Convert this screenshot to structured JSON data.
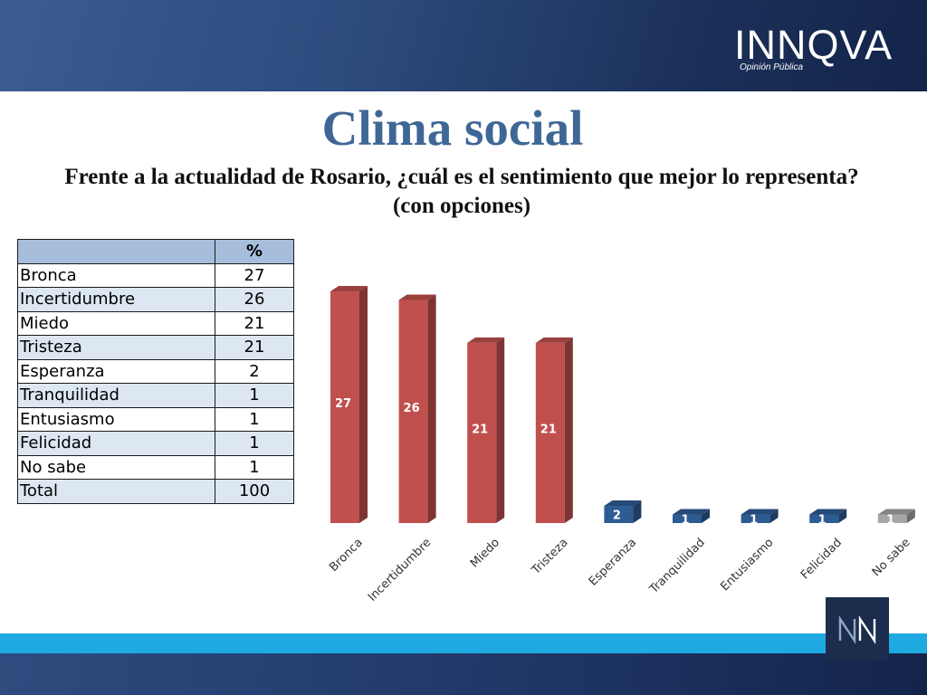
{
  "brand": {
    "name": "INNQVA",
    "tagline": "Opinión Pública"
  },
  "title": "Clima social",
  "subtitle": "Frente a la actualidad de Rosario, ¿cuál es el sentimiento que mejor lo representa? (con opciones)",
  "table": {
    "header": [
      "",
      "%"
    ],
    "rows": [
      {
        "label": "Bronca",
        "value": "27"
      },
      {
        "label": "Incertidumbre",
        "value": "26"
      },
      {
        "label": "Miedo",
        "value": "21"
      },
      {
        "label": "Tristeza",
        "value": "21"
      },
      {
        "label": "Esperanza",
        "value": "2"
      },
      {
        "label": "Tranquilidad",
        "value": "1"
      },
      {
        "label": "Entusiasmo",
        "value": "1"
      },
      {
        "label": "Felicidad",
        "value": "1"
      },
      {
        "label": "No sabe",
        "value": "1"
      },
      {
        "label": "Total",
        "value": "100"
      }
    ]
  },
  "chart_data": {
    "type": "bar",
    "categories": [
      "Bronca",
      "Incertidumbre",
      "Miedo",
      "Tristeza",
      "Esperanza",
      "Tranquilidad",
      "Entusiasmo",
      "Felicidad",
      "No sabe"
    ],
    "values": [
      27,
      26,
      21,
      21,
      2,
      1,
      1,
      1,
      1
    ],
    "colors": [
      "#c0504d",
      "#c0504d",
      "#c0504d",
      "#c0504d",
      "#2d5c92",
      "#2d5c92",
      "#2d5c92",
      "#2d5c92",
      "#a6a6a6"
    ],
    "data_labels": true,
    "style": "3d-column",
    "ylim": [
      0,
      30
    ],
    "grid": false,
    "legend": "none"
  },
  "colors": {
    "title": "#3f6796",
    "header_band": "#1b3059",
    "table_header": "#a6bedb",
    "table_alt_row": "#dde7f2",
    "accent_strip": "#1ea9e1"
  },
  "icons": [
    "innqva-logo",
    "nn-logo-icon"
  ]
}
